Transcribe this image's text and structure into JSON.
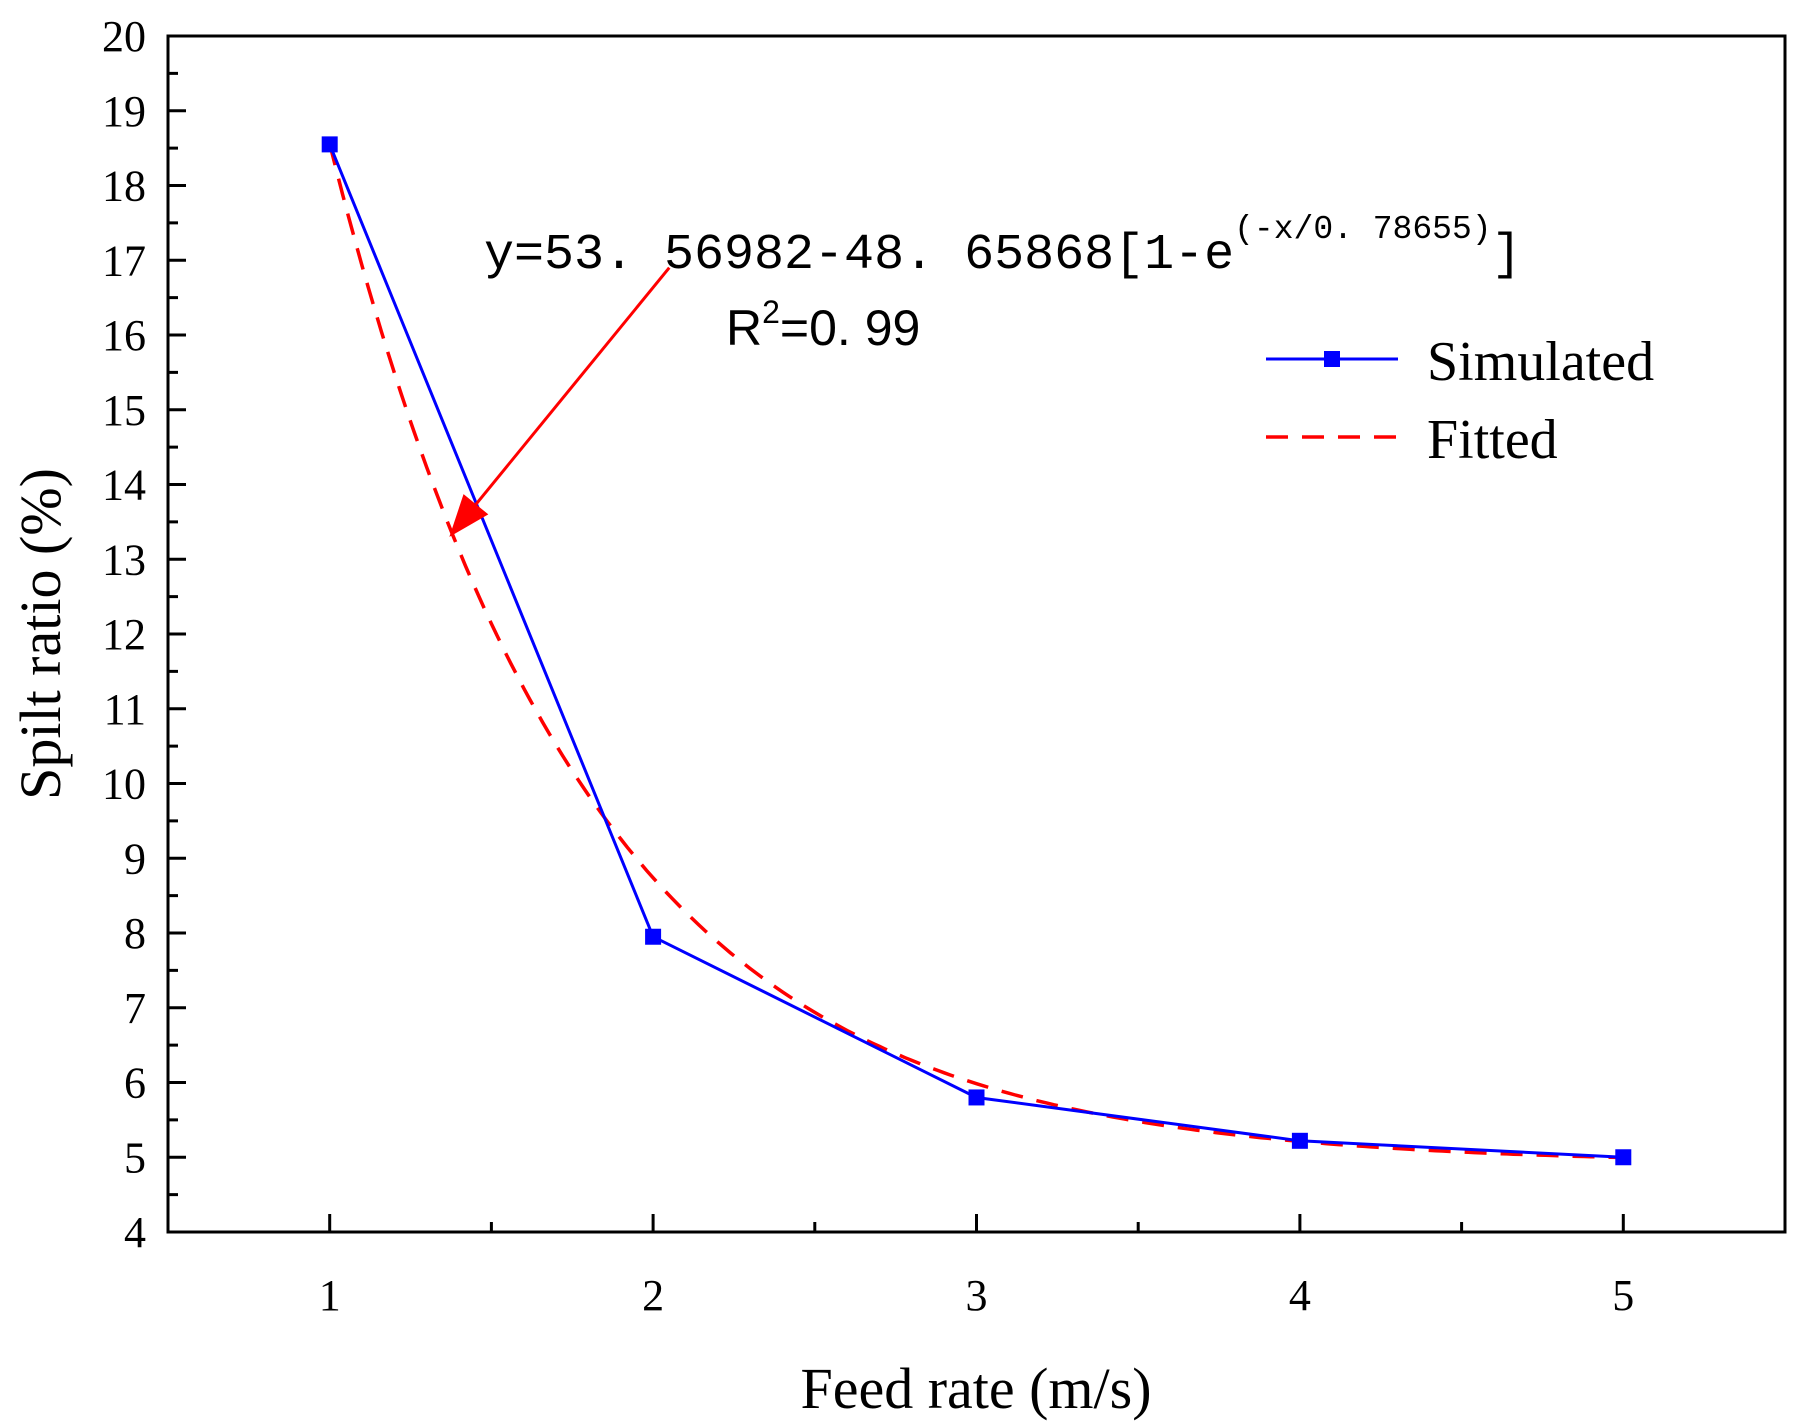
{
  "chart_data": {
    "type": "line",
    "xlabel": "Feed rate (m/s)",
    "ylabel": "Spilt ratio (%)",
    "xlim": [
      0.5,
      5.5
    ],
    "ylim": [
      4,
      20
    ],
    "x_ticks": [
      "1",
      "2",
      "3",
      "4",
      "5"
    ],
    "y_ticks": [
      "4",
      "5",
      "6",
      "7",
      "8",
      "9",
      "10",
      "11",
      "12",
      "13",
      "14",
      "15",
      "16",
      "17",
      "18",
      "19",
      "20"
    ],
    "grid": false,
    "legend_position": "top-right",
    "series": [
      {
        "name": "Simulated",
        "color": "#0000ff",
        "style": "solid-square-markers",
        "x": [
          1,
          2,
          3,
          4,
          5
        ],
        "values": [
          18.55,
          7.95,
          5.8,
          5.22,
          5.0
        ]
      },
      {
        "name": "Fitted",
        "color": "#ff0000",
        "style": "dashed",
        "model": {
          "a": 53.56982,
          "b": 48.65868,
          "t": 0.78655
        }
      }
    ],
    "annotation": {
      "equation_prefix": "y=53. 56982-48. 65868[1-e",
      "equation_exponent": "(-x/0. 78655)",
      "equation_suffix": "]",
      "r2_prefix": "R",
      "r2_sup": "2",
      "r2_suffix": "=0. 99",
      "arrow_color": "#ff0000",
      "arrow_from": [
        2.05,
        16.9
      ],
      "arrow_to": [
        1.37,
        13.3
      ]
    }
  }
}
